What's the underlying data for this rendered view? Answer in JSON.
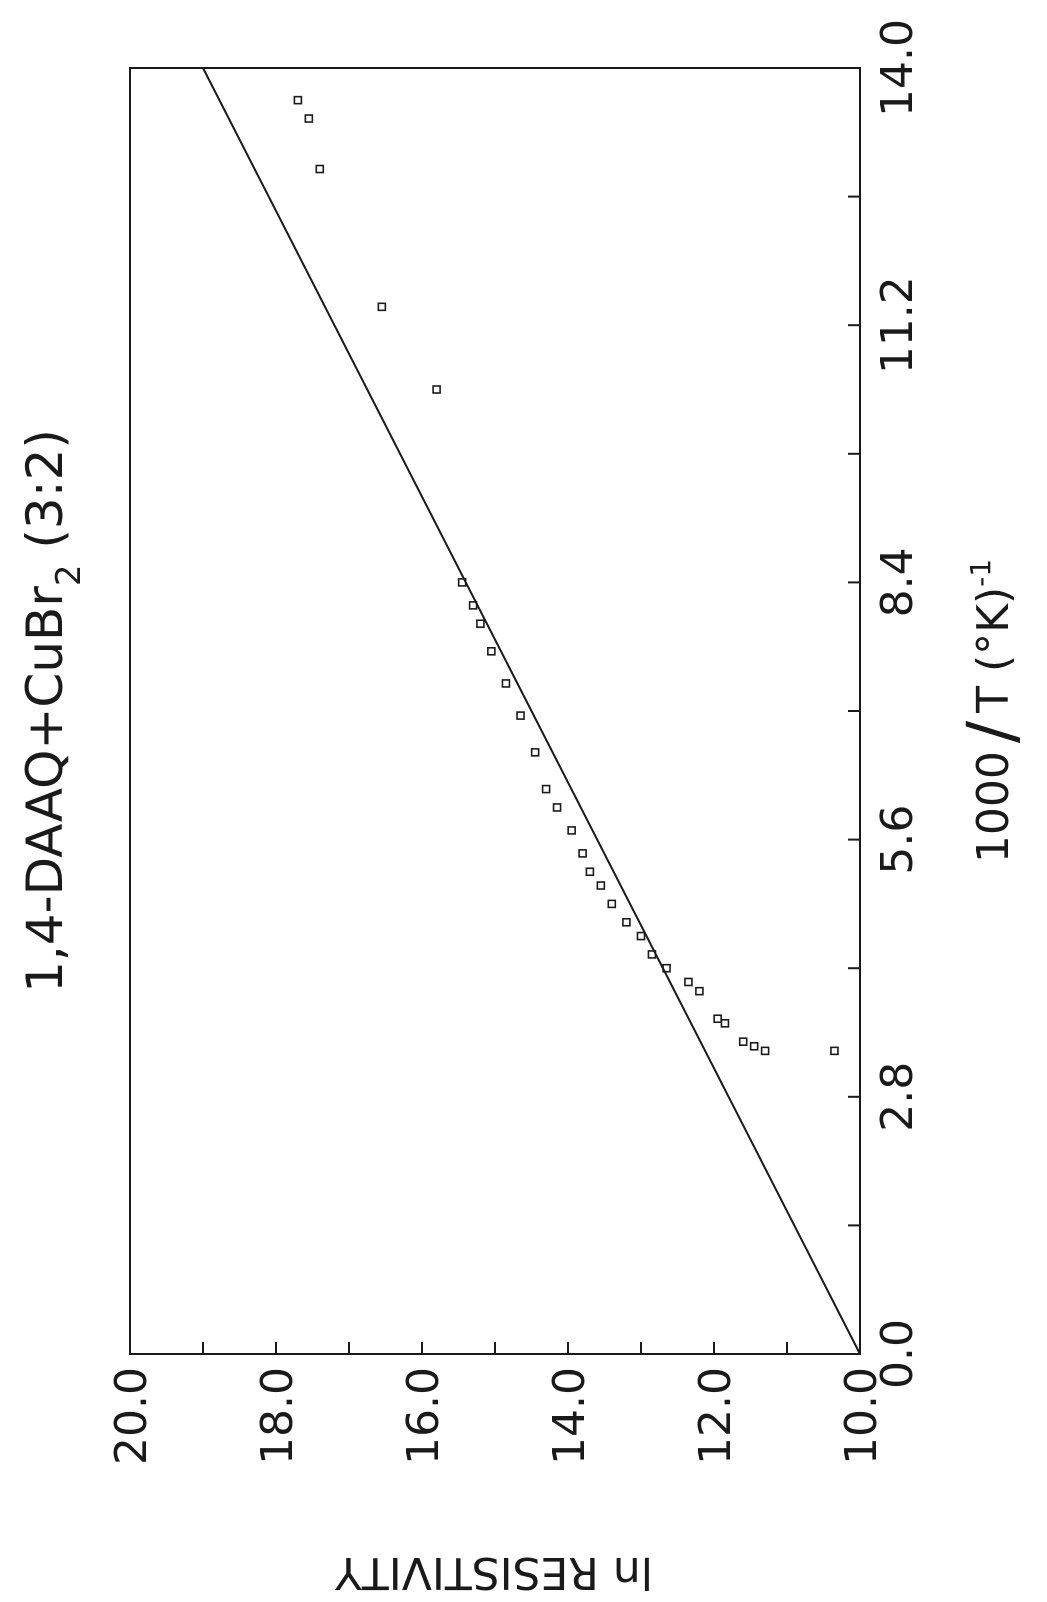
{
  "chart_data": {
    "type": "scatter",
    "title_main": "1,4-DAAQ+CuBr",
    "title_sub": "2",
    "title_tail": " (3:2)",
    "xlabel_main": "1000",
    "xlabel_slash": "/",
    "xlabel_rest": "T (°K)",
    "xlabel_sup": "-1",
    "ylabel": "ln RESISTIVITY",
    "xlim": [
      0.0,
      14.0
    ],
    "ylim": [
      10.0,
      20.0
    ],
    "x_tick_labels": [
      "0.0",
      "2.8",
      "5.6",
      "8.4",
      "11.2",
      "14.0"
    ],
    "x_tick_values": [
      0.0,
      2.8,
      5.6,
      8.4,
      11.2,
      14.0
    ],
    "y_tick_labels": [
      "10.0",
      "12.0",
      "14.0",
      "16.0",
      "18.0",
      "20.0"
    ],
    "y_tick_values": [
      10.0,
      12.0,
      14.0,
      16.0,
      18.0,
      20.0
    ],
    "fit_line": {
      "x": [
        0.0,
        14.0
      ],
      "y": [
        10.0,
        19.0
      ]
    },
    "series": [
      {
        "points": [
          {
            "x": 3.3,
            "y": 10.35
          },
          {
            "x": 3.3,
            "y": 11.3
          },
          {
            "x": 3.35,
            "y": 11.45
          },
          {
            "x": 3.4,
            "y": 11.6
          },
          {
            "x": 3.6,
            "y": 11.85
          },
          {
            "x": 3.65,
            "y": 11.95
          },
          {
            "x": 3.95,
            "y": 12.2
          },
          {
            "x": 4.05,
            "y": 12.35
          },
          {
            "x": 4.2,
            "y": 12.65
          },
          {
            "x": 4.35,
            "y": 12.85
          },
          {
            "x": 4.55,
            "y": 13.0
          },
          {
            "x": 4.7,
            "y": 13.2
          },
          {
            "x": 4.9,
            "y": 13.4
          },
          {
            "x": 5.1,
            "y": 13.55
          },
          {
            "x": 5.25,
            "y": 13.7
          },
          {
            "x": 5.45,
            "y": 13.8
          },
          {
            "x": 5.7,
            "y": 13.95
          },
          {
            "x": 5.95,
            "y": 14.15
          },
          {
            "x": 6.15,
            "y": 14.3
          },
          {
            "x": 6.55,
            "y": 14.45
          },
          {
            "x": 6.95,
            "y": 14.65
          },
          {
            "x": 7.3,
            "y": 14.85
          },
          {
            "x": 7.65,
            "y": 15.05
          },
          {
            "x": 7.95,
            "y": 15.2
          },
          {
            "x": 8.15,
            "y": 15.3
          },
          {
            "x": 8.4,
            "y": 15.45
          },
          {
            "x": 10.5,
            "y": 15.8
          },
          {
            "x": 11.4,
            "y": 16.55
          },
          {
            "x": 12.9,
            "y": 17.4
          },
          {
            "x": 13.45,
            "y": 17.55
          },
          {
            "x": 13.65,
            "y": 17.7
          }
        ]
      }
    ]
  }
}
